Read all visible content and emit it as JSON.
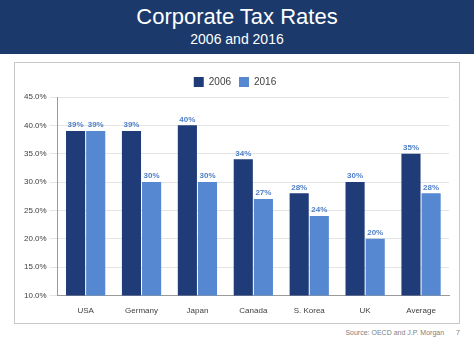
{
  "chart_data": {
    "type": "bar",
    "title": "Corporate Tax Rates",
    "subtitle": "2006 and 2016",
    "categories": [
      "USA",
      "Germany",
      "Japan",
      "Canada",
      "S. Korea",
      "UK",
      "Average"
    ],
    "series": [
      {
        "name": "2006",
        "color": "#1f3c78",
        "values": [
          39,
          39,
          40,
          34,
          28,
          30,
          35
        ],
        "value_labels": [
          "39%",
          "39%",
          "40%",
          "34%",
          "28%",
          "30%",
          "35%"
        ]
      },
      {
        "name": "2016",
        "color": "#5588d0",
        "values": [
          39,
          30,
          30,
          27,
          24,
          20,
          28
        ],
        "value_labels": [
          "39%",
          "30%",
          "30%",
          "27%",
          "24%",
          "20%",
          "28%"
        ]
      }
    ],
    "ylim": [
      10,
      45
    ],
    "yticks": [
      {
        "value": 10,
        "label": "10.0%"
      },
      {
        "value": 15,
        "label": "15.0%"
      },
      {
        "value": 20,
        "label": "20.0%"
      },
      {
        "value": 25,
        "label": "25.0%"
      },
      {
        "value": 30,
        "label": "30.0%"
      },
      {
        "value": 35,
        "label": "35.0%"
      },
      {
        "value": 40,
        "label": "40.0%"
      },
      {
        "value": 45,
        "label": "45.0%"
      }
    ],
    "grid": true,
    "legend": "top",
    "data_labels": true,
    "annotations": [
      "Source: OECD and J.P. Morgan",
      "7"
    ]
  }
}
